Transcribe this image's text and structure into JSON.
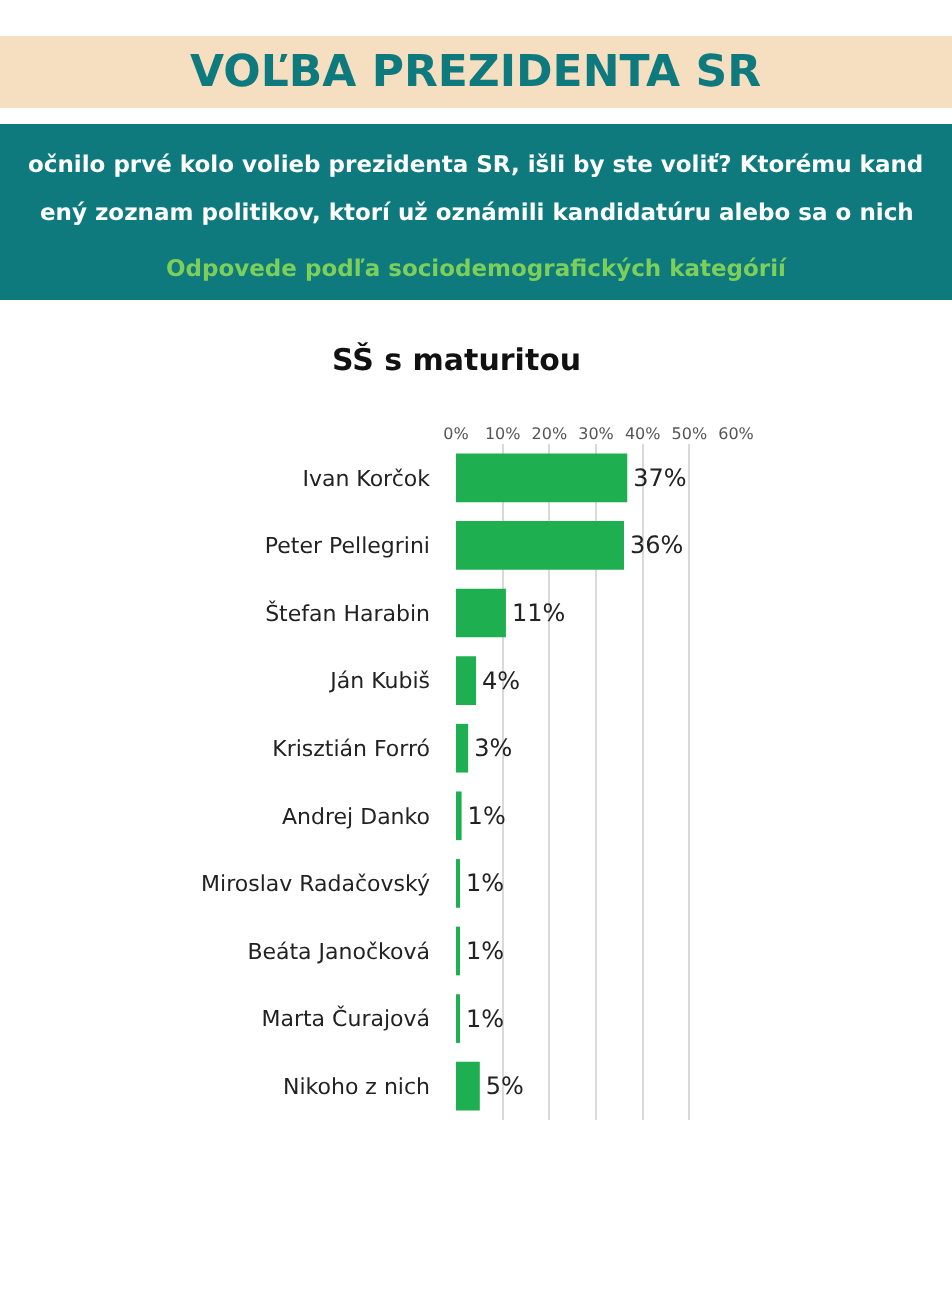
{
  "chart_data": {
    "type": "bar",
    "orientation": "horizontal",
    "title": "VOĽBA PREZIDENTA SR",
    "subtitle": "SŠ s maturitou",
    "annotations": [
      "očnilo prvé kolo volieb prezidenta SR, išli by ste voliť? Ktorému kand",
      "ený zoznam politikov, ktorí už oznámili kandidatúru alebo sa o nich",
      "Odpovede podľa sociodemografických kategórií"
    ],
    "categories": [
      "Ivan Korčok",
      "Peter Pellegrini",
      "Štefan Harabin",
      "Ján Kubiš",
      "Krisztián Forró",
      "Andrej Danko",
      "Miroslav Radačovský",
      "Beáta Janočková",
      "Marta Čurajová",
      "Nikoho z nich"
    ],
    "values": [
      36.7,
      36,
      10.7,
      4.3,
      2.6,
      1.2,
      0.8,
      0.7,
      0.6,
      5.1
    ],
    "value_labels": [
      "37%",
      "36%",
      "11%",
      "4%",
      "3%",
      "1%",
      "1%",
      "1%",
      "1%",
      "5%"
    ],
    "color": "#1eb050",
    "xlim": [
      0,
      60
    ],
    "xticks": [
      {
        "value": 0,
        "label": "0%"
      },
      {
        "value": 10,
        "label": "10%"
      },
      {
        "value": 20,
        "label": "20%"
      },
      {
        "value": 30,
        "label": "30%"
      },
      {
        "value": 40,
        "label": "40%"
      },
      {
        "value": 50,
        "label": "50%"
      },
      {
        "value": 60,
        "label": "60%"
      }
    ],
    "grid": "x",
    "legend": false
  }
}
